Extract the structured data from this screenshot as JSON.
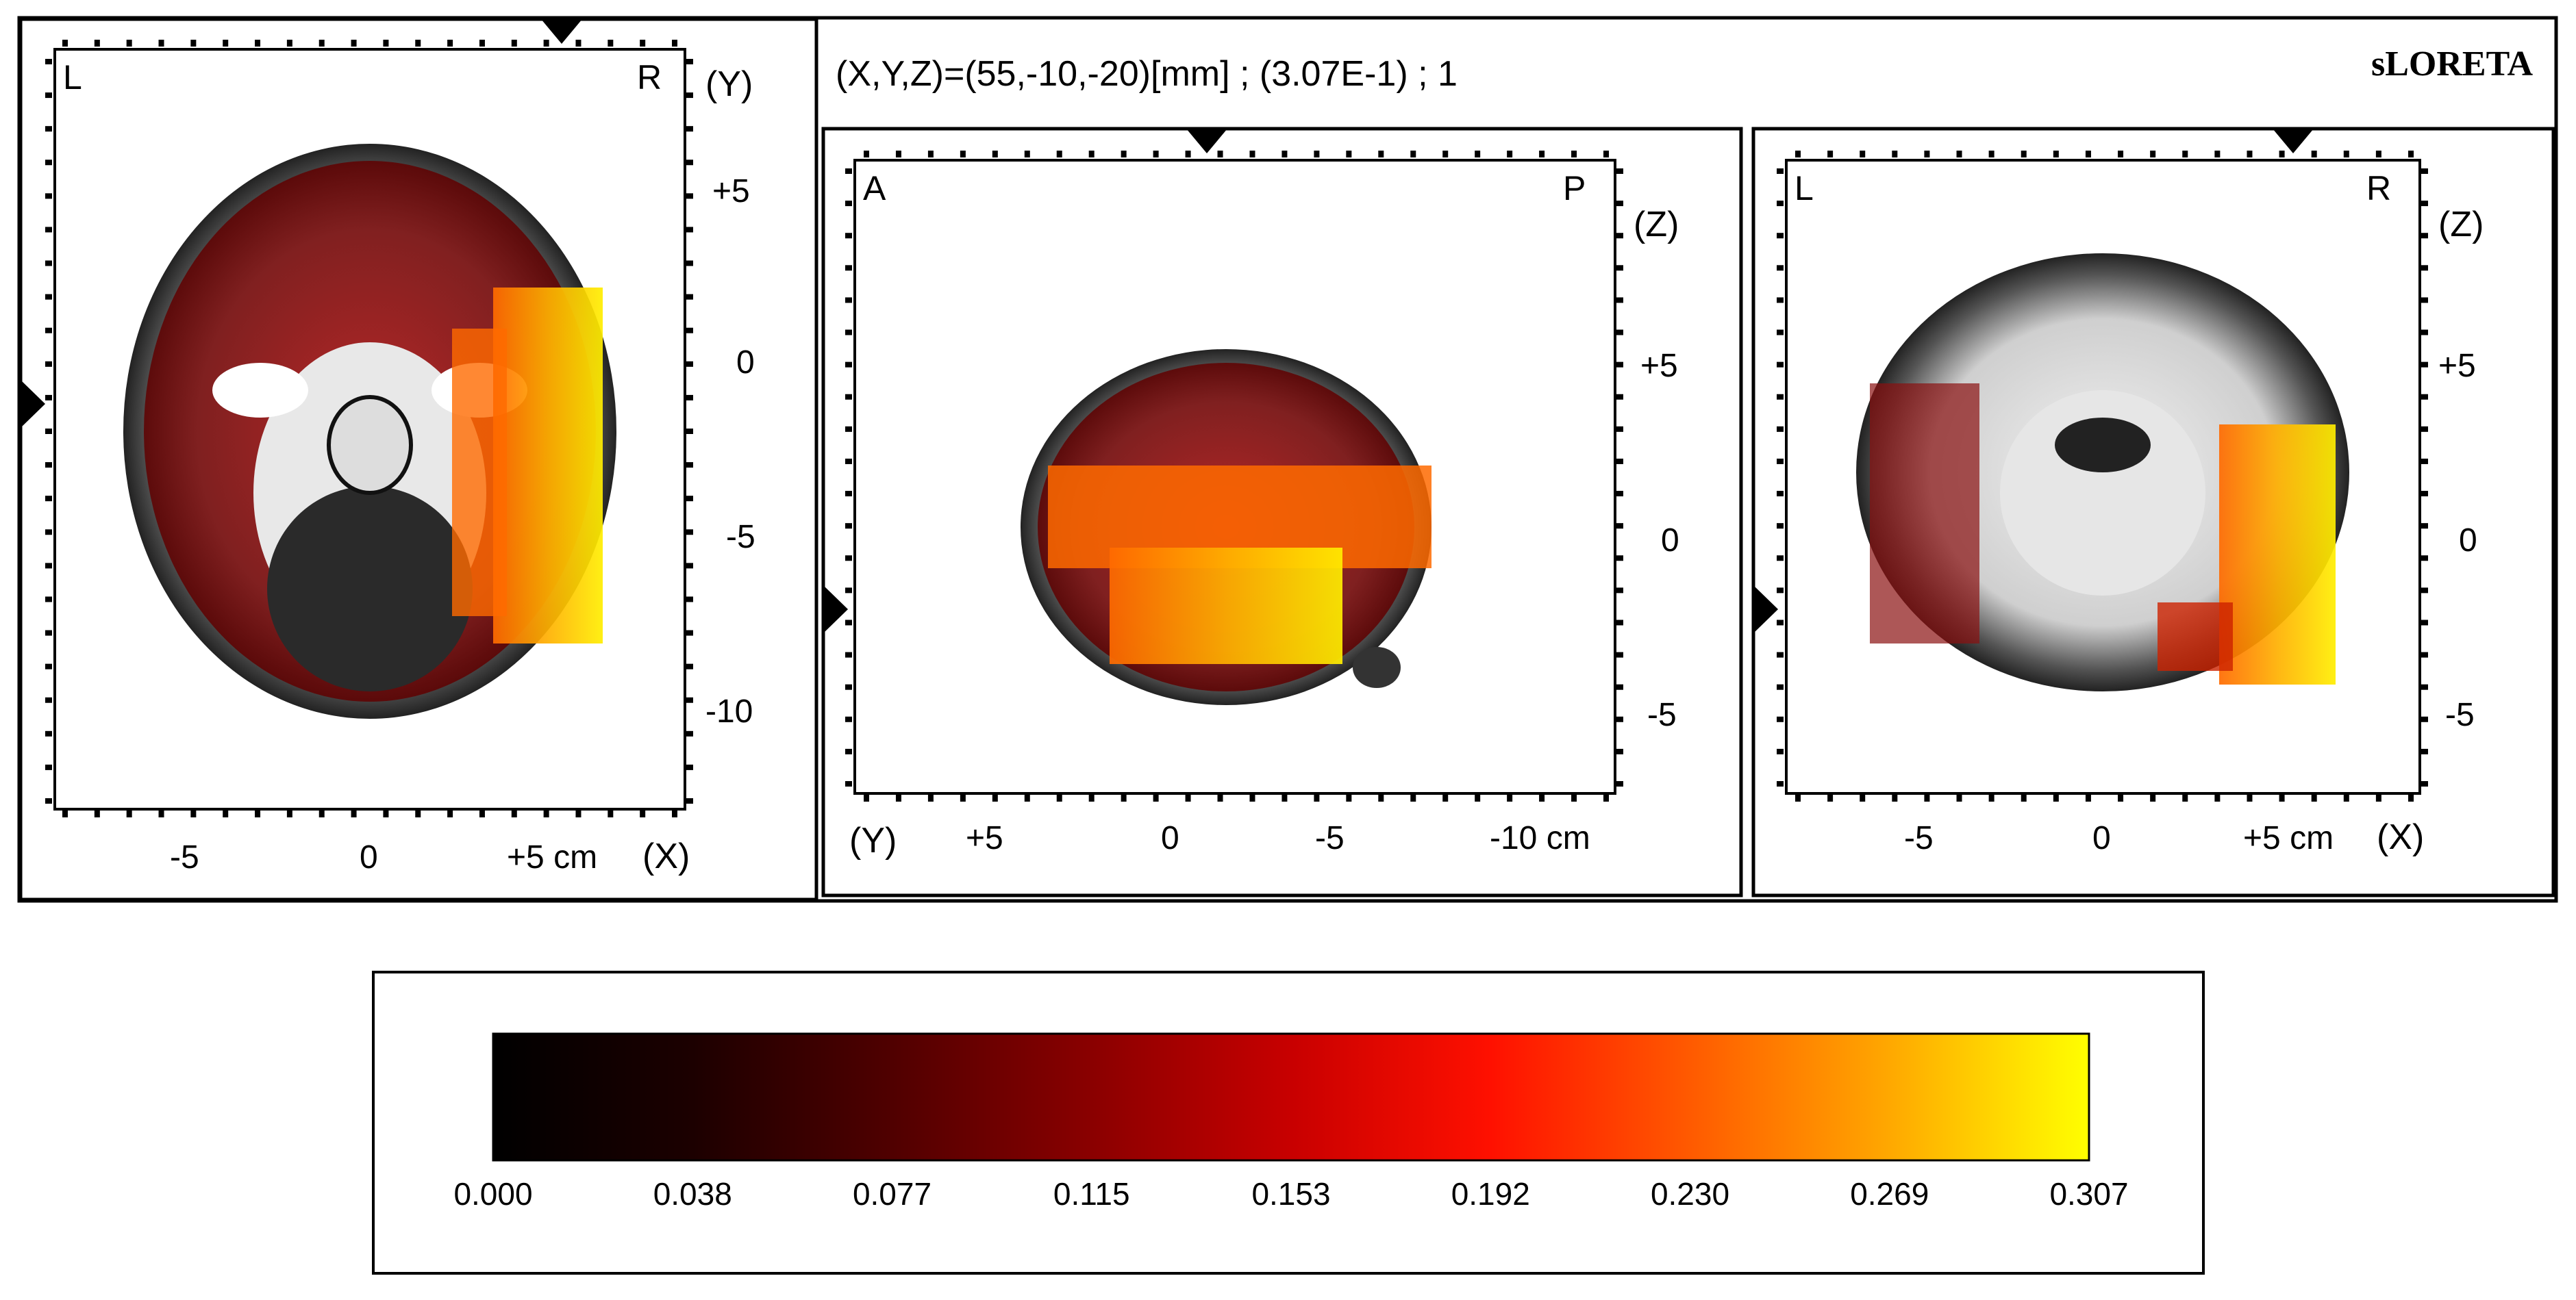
{
  "app": {
    "method": "sLORETA",
    "readout": "(X,Y,Z)=(55,-10,-20)[mm]  ;  (3.07E-1)  ;  1"
  },
  "axial_view": {
    "corner_left": "L",
    "corner_right": "R",
    "axis_y": "(Y)",
    "y_ticks": [
      "+5",
      "0",
      "-5",
      "-10"
    ],
    "x_ticks": [
      "-5",
      "0",
      "+5 cm"
    ],
    "axis_x": "(X)"
  },
  "sagittal_view": {
    "corner_left": "A",
    "corner_right": "P",
    "axis_z": "(Z)",
    "z_ticks": [
      "+5",
      "0",
      "-5"
    ],
    "axis_y": "(Y)",
    "y_ticks": [
      "+5",
      "0",
      "-5",
      "-10 cm"
    ]
  },
  "coronal_view": {
    "corner_left": "L",
    "corner_right": "R",
    "axis_z": "(Z)",
    "z_ticks": [
      "+5",
      "0",
      "-5"
    ],
    "x_ticks": [
      "-5",
      "0",
      "+5 cm"
    ],
    "axis_x": "(X)"
  },
  "colorbar": {
    "ticks": [
      "0.000",
      "0.038",
      "0.077",
      "0.115",
      "0.153",
      "0.192",
      "0.230",
      "0.269",
      "0.307"
    ],
    "stops": [
      "#000000",
      "#200000",
      "#5a0000",
      "#9a0000",
      "#d80000",
      "#ff1800",
      "#ff6600",
      "#ffaa00",
      "#ffff00"
    ]
  }
}
